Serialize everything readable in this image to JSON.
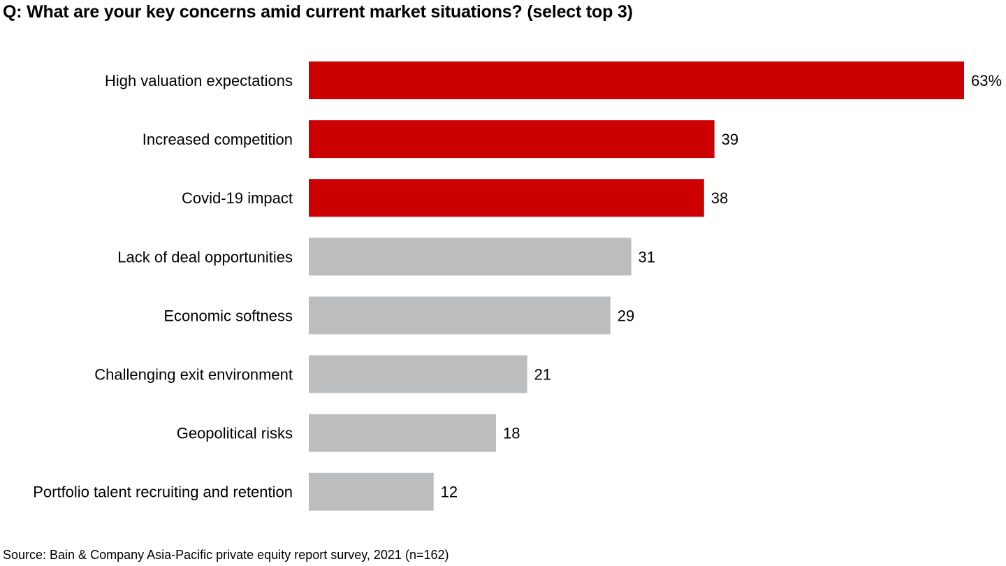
{
  "chart_data": {
    "type": "bar",
    "orientation": "horizontal",
    "title": "Q: What are your key concerns amid current market situations? (select top 3)",
    "xlabel": "",
    "ylabel": "",
    "unit": "%",
    "xlim": [
      0,
      63
    ],
    "grid": false,
    "legend": "none",
    "categories": [
      "High valuation expectations",
      "Increased competition",
      "Covid-19 impact",
      "Lack of deal opportunities",
      "Economic softness",
      "Challenging exit environment",
      "Geopolitical risks",
      "Portfolio talent recruiting and retention"
    ],
    "values": [
      63,
      39,
      38,
      31,
      29,
      21,
      18,
      12
    ],
    "data_labels": [
      "63%",
      "39",
      "38",
      "31",
      "29",
      "21",
      "18",
      "12"
    ],
    "highlighted": [
      true,
      true,
      true,
      false,
      false,
      false,
      false,
      false
    ],
    "colors": {
      "highlight": "#cc0000",
      "default": "#bcbdbf"
    },
    "source": "Source: Bain & Company Asia-Pacific private equity report survey, 2021 (n=162)"
  }
}
